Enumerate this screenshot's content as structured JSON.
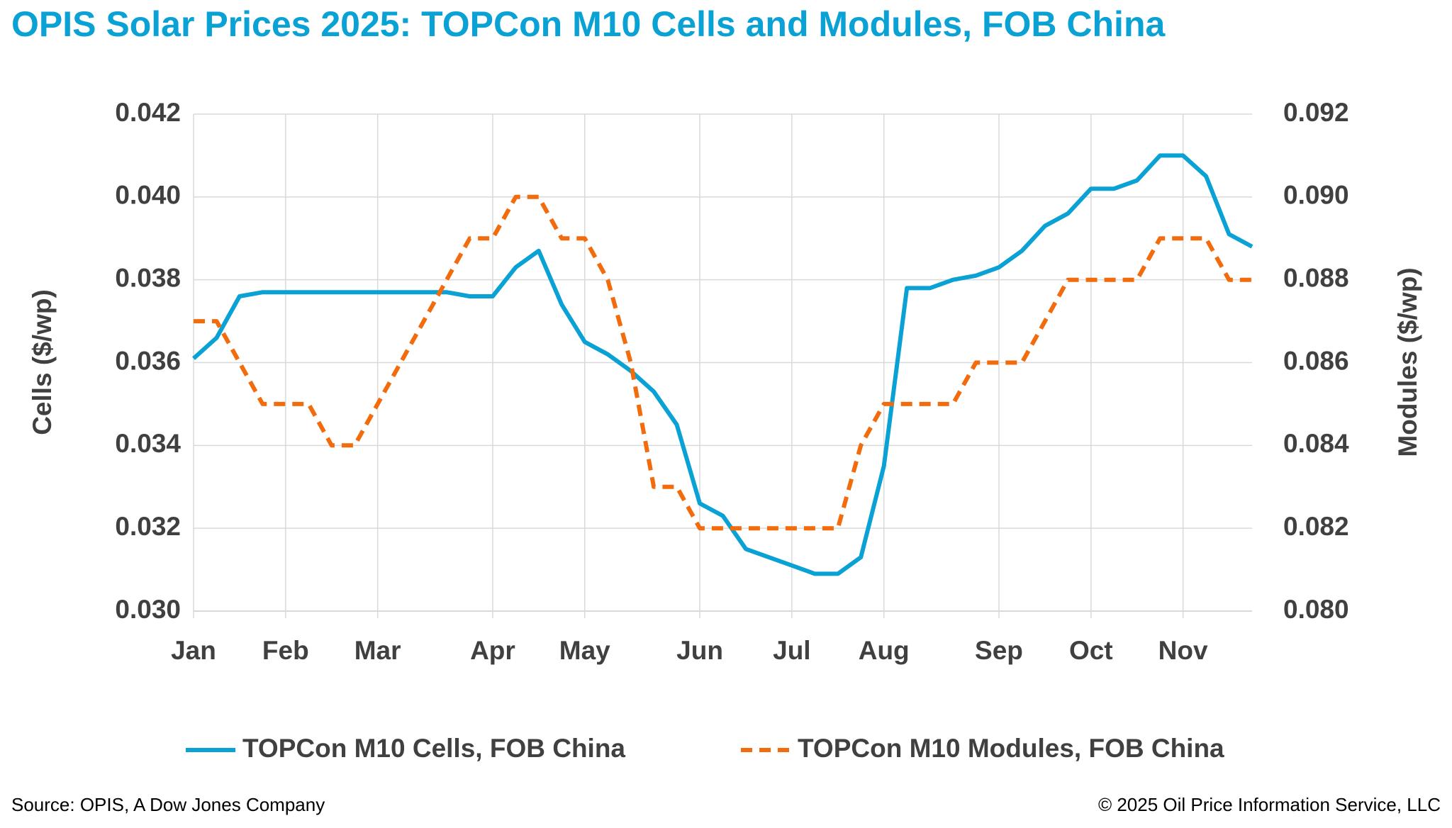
{
  "chart_data": {
    "type": "line",
    "title": "OPIS Solar Prices 2025: TOPCon M10 Cells and Modules, FOB China",
    "y_label": "Cells ($/wp)",
    "y2_label": "Modules ($/wp)",
    "categories": [
      "Jan",
      null,
      null,
      null,
      "Feb",
      null,
      null,
      null,
      "Mar",
      null,
      null,
      null,
      null,
      "Apr",
      null,
      null,
      null,
      "May",
      null,
      null,
      null,
      null,
      "Jun",
      null,
      null,
      null,
      "Jul",
      null,
      null,
      null,
      "Aug",
      null,
      null,
      null,
      null,
      "Sep",
      null,
      null,
      null,
      "Oct",
      null,
      null,
      null,
      "Nov",
      null,
      null,
      null
    ],
    "series": [
      {
        "name": "TOPCon M10 Cells, FOB China",
        "color": "#0aa2d4",
        "dash": false,
        "values": [
          0.0361,
          0.0366,
          0.0376,
          0.0377,
          0.0377,
          0.0377,
          0.0377,
          0.0377,
          0.0377,
          0.0377,
          0.0377,
          0.0377,
          0.0376,
          0.0376,
          0.0383,
          0.0387,
          0.0374,
          0.0365,
          0.0362,
          0.0358,
          0.0353,
          0.0345,
          0.0326,
          0.0323,
          0.0315,
          0.0313,
          0.0311,
          0.0309,
          0.0309,
          0.0313,
          0.0335,
          0.0378,
          0.0378,
          0.038,
          0.0381,
          0.0383,
          0.0387,
          0.0393,
          0.0396,
          0.0402,
          0.0402,
          0.0404,
          0.041,
          0.041,
          0.0405,
          0.0391,
          0.0388
        ]
      },
      {
        "name": "TOPCon M10 Modules, FOB China",
        "color": "#f26c0d",
        "dash": true,
        "axis": "y2",
        "values": [
          0.087,
          0.087,
          0.086,
          0.085,
          0.085,
          0.085,
          0.084,
          0.084,
          0.085,
          0.086,
          0.087,
          0.088,
          0.089,
          0.089,
          0.09,
          0.09,
          0.089,
          0.089,
          0.088,
          0.086,
          0.083,
          0.083,
          0.082,
          0.082,
          0.082,
          0.082,
          0.082,
          0.082,
          0.082,
          0.084,
          0.085,
          0.085,
          0.085,
          0.085,
          0.086,
          0.086,
          0.086,
          0.087,
          0.088,
          0.088,
          0.088,
          0.088,
          0.089,
          0.089,
          0.089,
          0.088,
          0.088
        ]
      }
    ],
    "ylim": [
      0.03,
      0.042
    ],
    "yticks": [
      {
        "value": 0.03,
        "label": "0.030"
      },
      0.032,
      0.034,
      0.036,
      0.038,
      {
        "value": 0.04,
        "label": "0.040"
      },
      0.042
    ],
    "y2lim": [
      0.08,
      0.092
    ],
    "y2ticks": [
      {
        "value": 0.08,
        "label": "0.080"
      },
      0.082,
      0.084,
      0.086,
      0.088,
      {
        "value": 0.09,
        "label": "0.090"
      },
      0.092
    ],
    "grid": true,
    "legend": "bottom",
    "source": "Source: OPIS, A Dow Jones Company",
    "copyright": "© 2025 Oil Price Information Service, LLC"
  }
}
